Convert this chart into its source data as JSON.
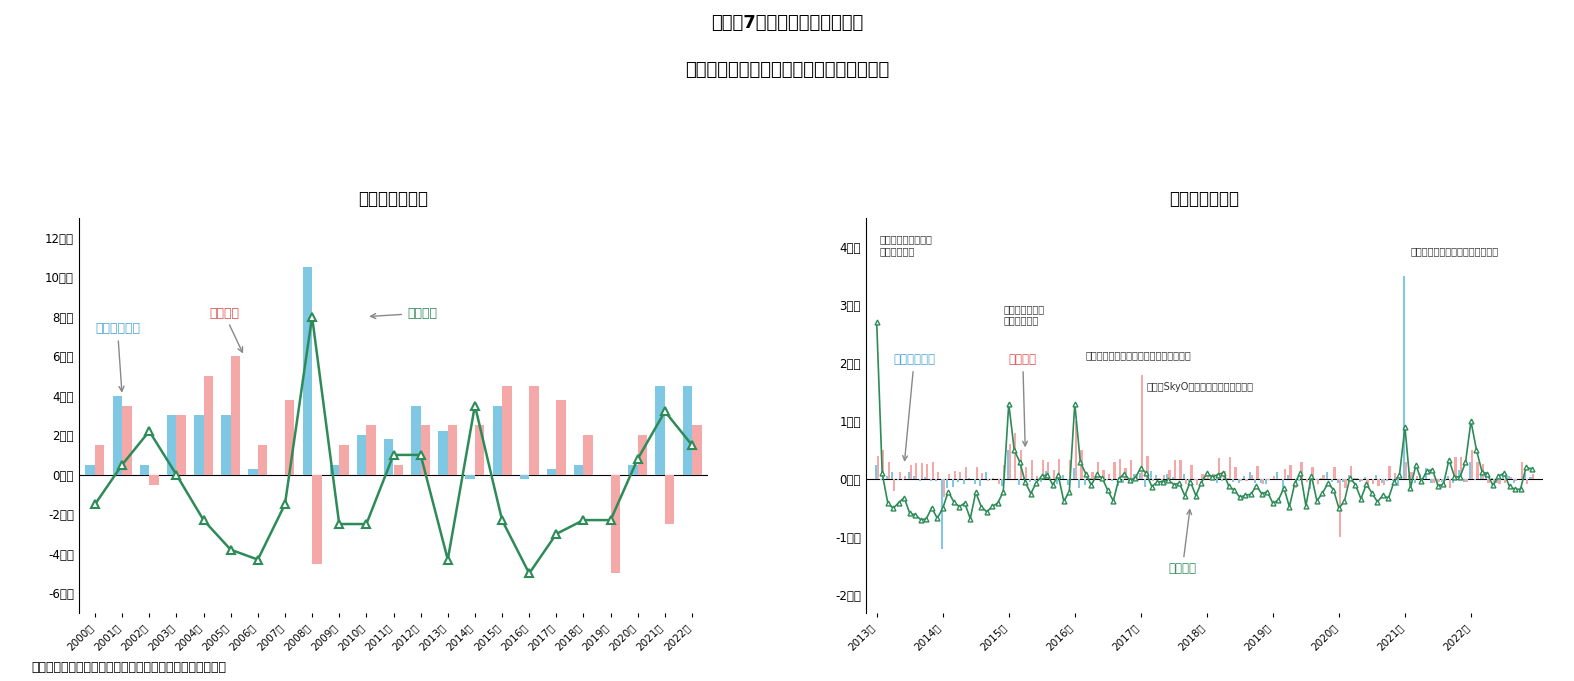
{
  "title_line1": "図表－7　大阪ビジネス地区の",
  "title_line2": "賃貸可能面積・賃貸面積・空室面積の増減",
  "left_subtitle": "＜年次・増減＞",
  "right_subtitle": "＜月次・増減＞",
  "source_text": "（出所）三鬼商事のデータを基にニッセイ基礎研究所作成",
  "annual_years": [
    2000,
    2001,
    2002,
    2003,
    2004,
    2005,
    2006,
    2007,
    2008,
    2009,
    2010,
    2011,
    2012,
    2013,
    2014,
    2015,
    2016,
    2017,
    2018,
    2019,
    2020,
    2021,
    2022
  ],
  "annual_rentable": [
    0.5,
    4.0,
    0.5,
    3.0,
    3.0,
    3.0,
    0.3,
    0.0,
    10.5,
    0.5,
    2.0,
    1.8,
    3.5,
    2.2,
    -0.2,
    3.5,
    -0.2,
    0.3,
    0.5,
    0.0,
    0.5,
    4.5,
    4.5
  ],
  "annual_rental": [
    1.5,
    3.5,
    -0.5,
    3.0,
    5.0,
    6.0,
    1.5,
    3.8,
    -4.5,
    1.5,
    2.5,
    0.5,
    2.5,
    2.5,
    2.5,
    4.5,
    4.5,
    3.8,
    2.0,
    -5.0,
    2.0,
    -2.5,
    2.5
  ],
  "annual_vacancy": [
    -1.5,
    0.5,
    2.2,
    0.0,
    -2.3,
    -3.8,
    -4.3,
    -1.5,
    8.0,
    -2.5,
    -2.5,
    1.0,
    1.0,
    -4.3,
    3.5,
    -2.3,
    -5.0,
    -3.0,
    -2.3,
    -2.3,
    0.8,
    3.2,
    1.5
  ],
  "annual_yticks": [
    -6,
    -4,
    -2,
    0,
    2,
    4,
    6,
    8,
    10,
    12
  ],
  "annual_yticklabels": [
    "-6万坪",
    "-4万坪",
    "-2万坪",
    "0万坪",
    "2万坪",
    "4万坪",
    "6万坪",
    "8万坪",
    "10万坪",
    "12万坪"
  ],
  "annual_ylim": [
    -7,
    13
  ],
  "rentable_color": "#7ec8e3",
  "rental_color": "#f4a8a8",
  "vacancy_line_color": "#2d8b57",
  "monthly_yticks": [
    -2,
    -1,
    0,
    1,
    2,
    3,
    4
  ],
  "monthly_yticklabels": [
    "-2万坪",
    "-1万坪",
    "0万坪",
    "1万坪",
    "2万坪",
    "3万坪",
    "4万坪"
  ],
  "monthly_ylim": [
    -2.3,
    4.5
  ],
  "background_color": "#ffffff"
}
